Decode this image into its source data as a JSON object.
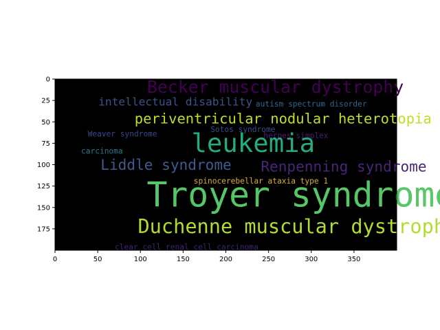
{
  "chart_data": {
    "type": "wordcloud",
    "image_extent": {
      "x": [
        0,
        400
      ],
      "y": [
        200,
        0
      ]
    },
    "xlim": [
      0,
      400
    ],
    "ylim": [
      200,
      0
    ],
    "xticks": [
      0,
      50,
      100,
      150,
      200,
      250,
      300,
      350
    ],
    "yticks": [
      0,
      25,
      50,
      75,
      100,
      125,
      150,
      175
    ],
    "background": "#000000",
    "words": [
      {
        "text": "Becker muscular dystrophy",
        "x": 258,
        "y": 16,
        "size": 20,
        "color": "#440154"
      },
      {
        "text": "intellectual disability",
        "x": 141,
        "y": 31,
        "size": 13,
        "color": "#3b528b"
      },
      {
        "text": "autism spectrum disorder",
        "x": 300,
        "y": 32,
        "size": 9,
        "color": "#31688e"
      },
      {
        "text": "periventricular nodular heterotopia",
        "x": 267,
        "y": 52,
        "size": 16.5,
        "color": "#bddf26"
      },
      {
        "text": "Weaver syndrome",
        "x": 79,
        "y": 67,
        "size": 9,
        "color": "#404387"
      },
      {
        "text": "Sotos syndrome",
        "x": 220,
        "y": 62,
        "size": 9,
        "color": "#3d4a89"
      },
      {
        "text": "herpes simplex",
        "x": 282,
        "y": 69,
        "size": 9,
        "color": "#482173"
      },
      {
        "text": "leukemia",
        "x": 232,
        "y": 85,
        "size": 30,
        "color": "#25ab82"
      },
      {
        "text": "carcinoma",
        "x": 55,
        "y": 87,
        "size": 9,
        "color": "#2a788e"
      },
      {
        "text": "Liddle syndrome",
        "x": 130,
        "y": 106,
        "size": 17,
        "color": "#3e5b8c"
      },
      {
        "text": "Renpenning syndrome",
        "x": 338,
        "y": 108,
        "size": 17,
        "color": "#482576"
      },
      {
        "text": "spinocerebellar ataxia type 1",
        "x": 241,
        "y": 122,
        "size": 9,
        "color": "#d8b02d"
      },
      {
        "text": "Troyer syndrome",
        "x": 288,
        "y": 149,
        "size": 40,
        "color": "#56c667"
      },
      {
        "text": "Duchenne muscular dystrophy",
        "x": 284,
        "y": 180,
        "size": 23,
        "color": "#b0dd2f"
      },
      {
        "text": "clear cell renal cell carcinoma",
        "x": 154,
        "y": 199,
        "size": 9,
        "color": "#3e2374"
      }
    ]
  }
}
